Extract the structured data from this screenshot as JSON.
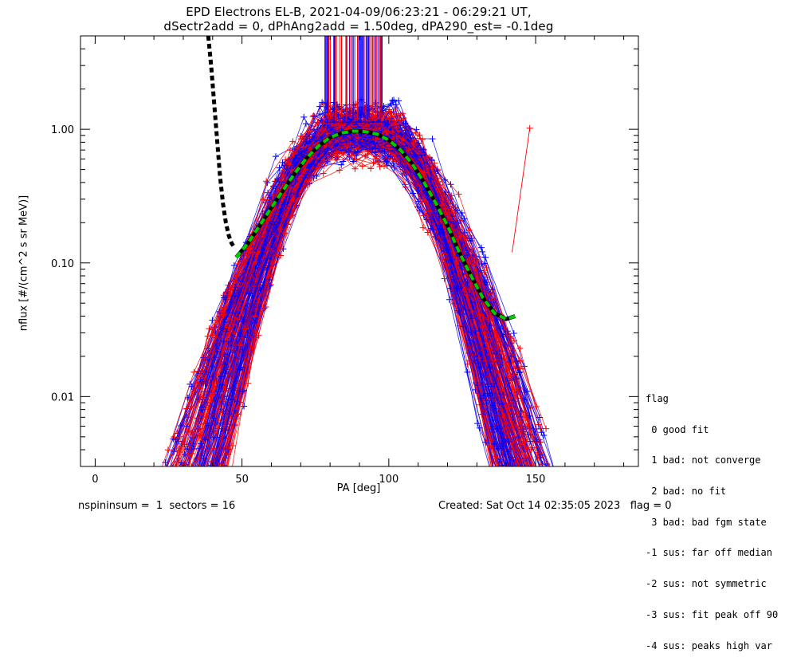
{
  "chart_data": {
    "type": "line",
    "title_line1": "EPD Electrons EL-B, 2021-04-09/06:23:21 - 06:29:21 UT,",
    "title_line2": "dSectr2add = 0, dPhAng2add = 1.50deg, dPA290_est=  -0.1deg",
    "xlabel": "PA [deg]",
    "ylabel": "nflux [#/(cm^2 s sr MeV)]",
    "xlim": [
      -5,
      185
    ],
    "ylim": [
      0.003,
      5.0
    ],
    "ylog": true,
    "x_ticks": [
      0,
      50,
      100,
      150
    ],
    "x_tick_labels": [
      "0",
      "50",
      "100",
      "150"
    ],
    "y_ticks": [
      0.01,
      0.1,
      1.0
    ],
    "y_tick_labels": [
      "0.01",
      "0.10",
      "1.00"
    ],
    "series_colors": [
      "#ff0000",
      "#0000ff"
    ],
    "fit_curve": {
      "color": "#00cc00",
      "x": [
        48,
        52,
        56,
        60,
        64,
        68,
        72,
        76,
        80,
        84,
        88,
        92,
        96,
        100,
        104,
        108,
        112,
        116,
        120,
        124,
        128,
        132,
        136,
        140,
        143
      ],
      "y": [
        0.11,
        0.14,
        0.19,
        0.26,
        0.35,
        0.47,
        0.61,
        0.75,
        0.87,
        0.94,
        0.97,
        0.96,
        0.92,
        0.83,
        0.7,
        0.55,
        0.4,
        0.28,
        0.19,
        0.12,
        0.08,
        0.055,
        0.042,
        0.038,
        0.04
      ]
    },
    "model_curve": {
      "color": "#000000",
      "x": [
        38.5,
        39.5,
        40.5,
        41.5,
        42.5,
        43.5,
        44.5,
        45.5,
        46.5,
        47.5
      ],
      "y": [
        5.0,
        3.0,
        1.6,
        0.85,
        0.45,
        0.28,
        0.2,
        0.16,
        0.14,
        0.13
      ]
    },
    "red_point": {
      "x": 148,
      "y": 1.02
    }
  },
  "legend": {
    "title": "flag",
    "items": [
      " 0 good fit",
      " 1 bad: not converge",
      " 2 bad: no fit",
      " 3 bad: bad fgm state",
      "-1 sus: far off median",
      "-2 sus: not symmetric",
      "-3 sus: fit peak off 90",
      "-4 sus: peaks high var"
    ]
  },
  "footer": {
    "left": "nspininsum =  1  sectors = 16",
    "right": "Created: Sat Oct 14 02:35:05 2023   flag = 0"
  }
}
